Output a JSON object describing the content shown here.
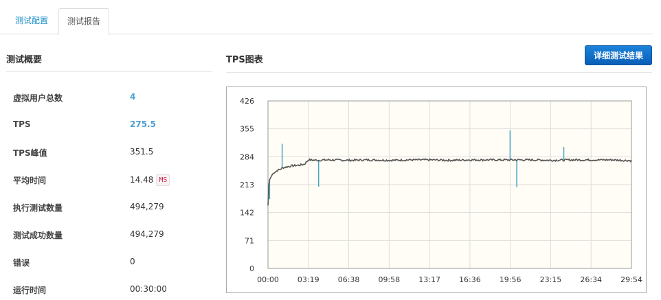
{
  "tabs": [
    {
      "label": "测试配置"
    },
    {
      "label": "测试报告"
    }
  ],
  "summary": {
    "title": "测试概要",
    "rows": [
      {
        "label": "虚拟用户总数",
        "value": "4"
      },
      {
        "label": "TPS",
        "value": "275.5"
      },
      {
        "label": "TPS峰值",
        "value": "351.5"
      },
      {
        "label": "平均时间",
        "value": "14.48",
        "unit": "MS"
      },
      {
        "label": "执行测试数量",
        "value": "494,279"
      },
      {
        "label": "测试成功数量",
        "value": "494,279"
      },
      {
        "label": "错误",
        "value": "0"
      },
      {
        "label": "运行时间",
        "value": "00:30:00"
      }
    ]
  },
  "chart_panel": {
    "title": "TPS图表",
    "detail_button": "详细测试结果"
  },
  "chart_data": {
    "type": "line",
    "title": "",
    "xlabel": "",
    "ylabel": "",
    "y_ticks": [
      0,
      71,
      142,
      213,
      284,
      355,
      426
    ],
    "ylim": [
      0,
      426
    ],
    "x_ticks": [
      "00:00",
      "03:19",
      "06:38",
      "09:58",
      "13:17",
      "16:36",
      "19:56",
      "23:15",
      "26:34",
      "29:54"
    ],
    "xlim_seconds": [
      0,
      1794
    ],
    "grid": true,
    "line_color": "#555555",
    "spike_color": "#4aa3c8",
    "plot_background": "#fffdf5",
    "series": [
      {
        "x_seconds": [
          0,
          5,
          10,
          15,
          20,
          30,
          40,
          50,
          60,
          70,
          80,
          100,
          120,
          140,
          160,
          180,
          199,
          240,
          300,
          400,
          500,
          600,
          700,
          800,
          900,
          1000,
          1100,
          1195,
          1200,
          1300,
          1400,
          1500,
          1600,
          1700,
          1794
        ],
        "values": [
          160,
          222,
          228,
          232,
          238,
          244,
          247,
          250,
          252,
          255,
          257,
          259,
          261,
          262,
          263,
          265,
          276,
          275,
          276,
          275,
          276,
          275,
          276,
          276,
          275,
          276,
          276,
          276,
          276,
          276,
          275,
          276,
          276,
          276,
          274
        ]
      }
    ],
    "spikes": [
      {
        "x_seconds": 8,
        "value": 176
      },
      {
        "x_seconds": 70,
        "value": 317
      },
      {
        "x_seconds": 250,
        "value": 208
      },
      {
        "x_seconds": 1195,
        "value": 351
      },
      {
        "x_seconds": 1228,
        "value": 207
      },
      {
        "x_seconds": 1460,
        "value": 309
      }
    ]
  }
}
